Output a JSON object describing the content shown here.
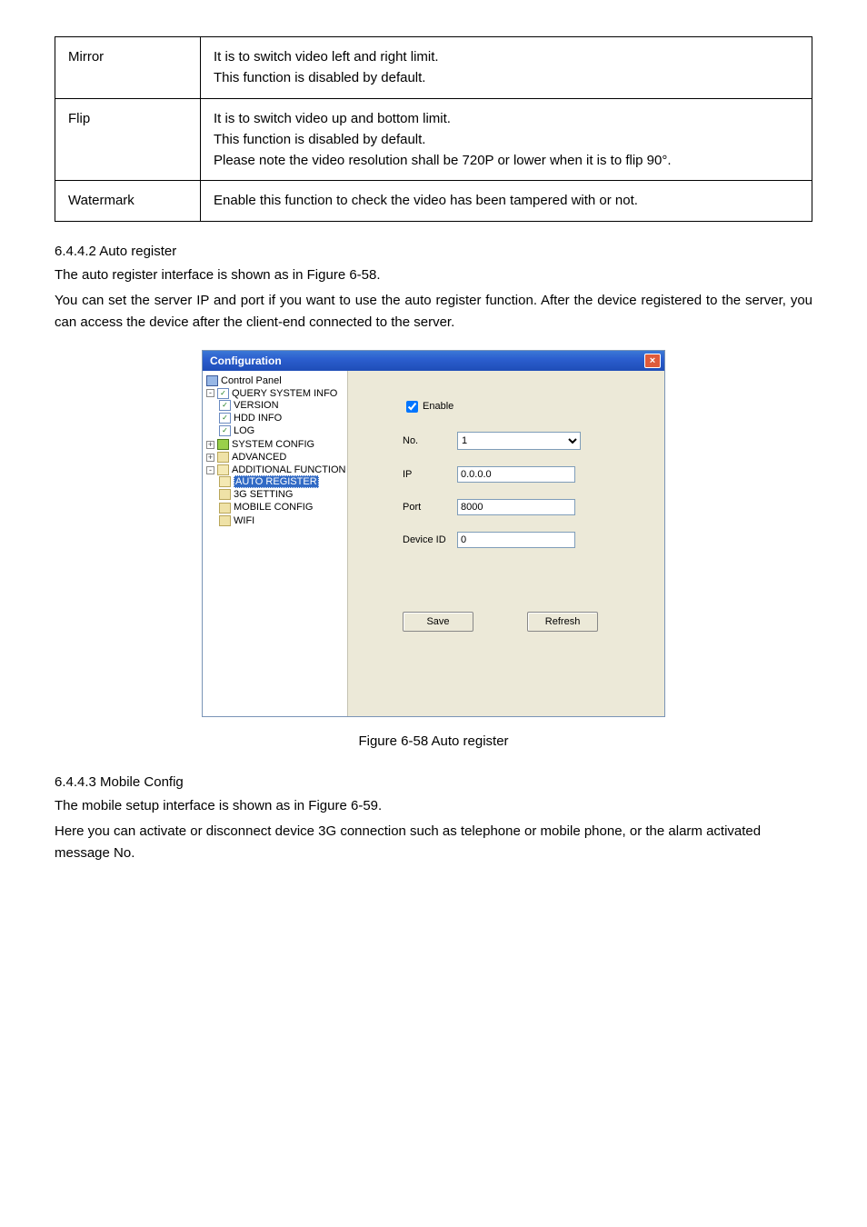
{
  "table": {
    "rows": [
      {
        "param": "Mirror",
        "desc": "It is to switch video left and right limit.\nThis function is disabled by default."
      },
      {
        "param": "Flip",
        "desc": "It is to switch video up and bottom limit.\nThis function is disabled by default.\nPlease note the video resolution shall be 720P or lower when it is to flip 90°."
      },
      {
        "param": "Watermark",
        "desc": "Enable this function to check the video has been tampered with or not."
      }
    ]
  },
  "sec1": {
    "num": "6.4.4.2 Auto register",
    "l1": "The auto register interface is shown as in Figure 6-58.",
    "l2": "You can set the server IP and port if you want to use the auto register function. After the device registered to the server, you can access the device after the client-end connected to the server."
  },
  "window": {
    "title": "Configuration",
    "close": "×",
    "tree": {
      "root": "Control Panel",
      "q": "QUERY SYSTEM INFO",
      "q1": "VERSION",
      "q2": "HDD INFO",
      "q3": "LOG",
      "sys": "SYSTEM CONFIG",
      "adv": "ADVANCED",
      "add": "ADDITIONAL FUNCTION",
      "a1": "AUTO REGISTER",
      "a2": "3G SETTING",
      "a3": "MOBILE CONFIG",
      "a4": "WIFI"
    },
    "form": {
      "enable": "Enable",
      "no_lbl": "No.",
      "no_val": "1",
      "ip_lbl": "IP",
      "ip_val": "0.0.0.0",
      "port_lbl": "Port",
      "port_val": "8000",
      "did_lbl": "Device ID",
      "did_val": "0",
      "save": "Save",
      "refresh": "Refresh"
    }
  },
  "caption": "Figure 6-58 Auto register",
  "sec2": {
    "num": "6.4.4.3 Mobile Config",
    "l1": "The mobile setup interface is shown as in Figure 6-59.",
    "l2": "Here you can activate or disconnect device 3G connection such as telephone or mobile phone, or the alarm activated message No."
  }
}
